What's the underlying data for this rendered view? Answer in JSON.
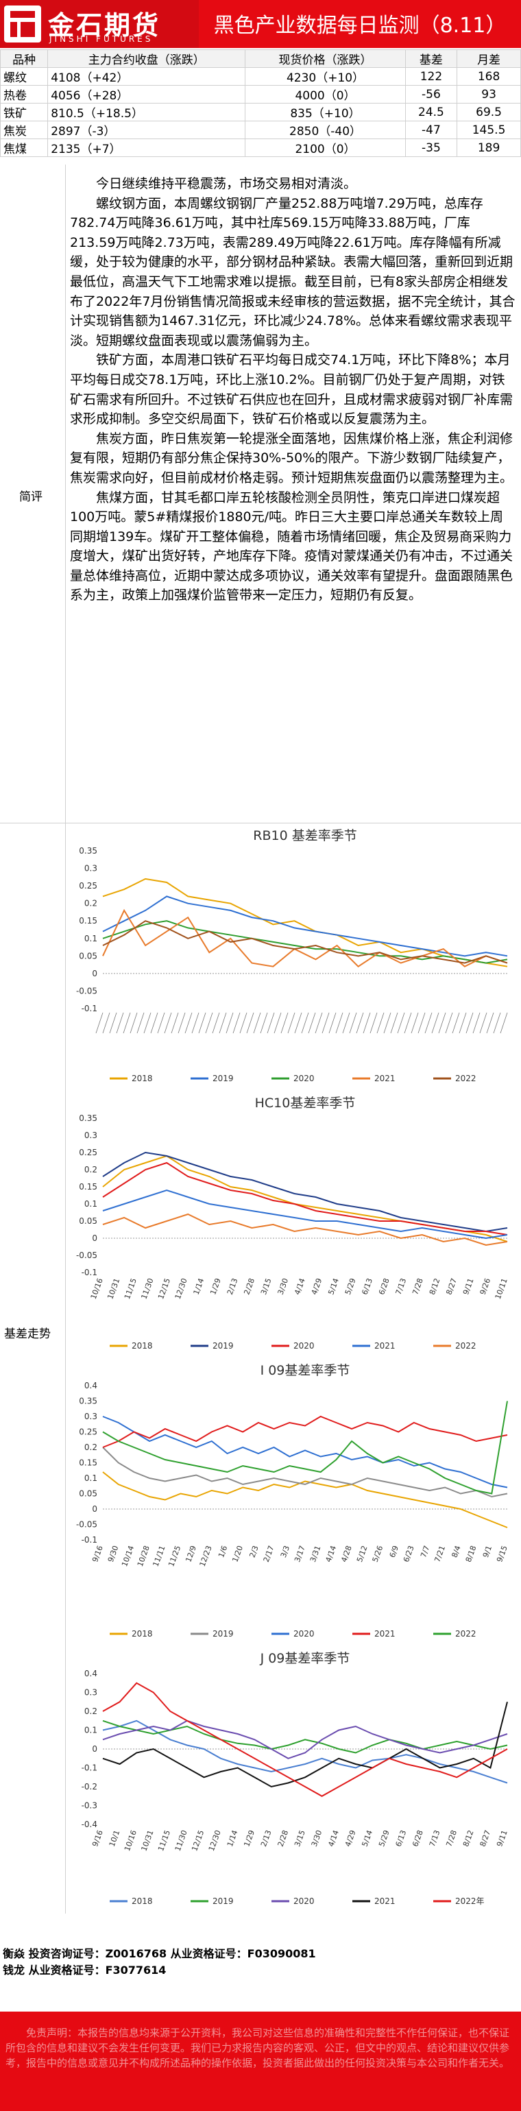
{
  "header": {
    "logo_cn": "金石期货",
    "logo_en": "JINSHI FUTURES",
    "title": "黑色产业数据每日监测（8.11）"
  },
  "table": {
    "columns": [
      "品种",
      "主力合约收盘（涨跌）",
      "现货价格（涨跌）",
      "基差",
      "月差"
    ],
    "rows": [
      [
        "螺纹",
        "4108（+42）",
        "4230（+10）",
        "122",
        "168"
      ],
      [
        "热卷",
        "4056（+28）",
        "4000（0）",
        "-56",
        "93"
      ],
      [
        "铁矿",
        "810.5（+18.5）",
        "835（+10）",
        "24.5",
        "69.5"
      ],
      [
        "焦炭",
        "2897（-3）",
        "2850（-40）",
        "-47",
        "145.5"
      ],
      [
        "焦煤",
        "2135（+7）",
        "2100（0）",
        "-35",
        "189"
      ]
    ]
  },
  "summary": {
    "label": "简评",
    "paragraphs": [
      "今日继续维持平稳震荡，市场交易相对清淡。",
      "螺纹钢方面，本周螺纹钢钢厂产量252.88万吨增7.29万吨，总库存782.74万吨降36.61万吨，其中社库569.15万吨降33.88万吨，厂库213.59万吨降2.73万吨，表需289.49万吨降22.61万吨。库存降幅有所减缓，处于较为健康的水平，部分钢材品种紧缺。表需大幅回落，重新回到近期最低位，高温天气下工地需求难以提振。截至目前，已有8家头部房企相继发布了2022年7月份销售情况简报或未经审核的营运数据，据不完全统计，其合计实现销售额为1467.31亿元，环比减少24.78%。总体来看螺纹需求表现平淡。短期螺纹盘面表现或以震荡偏弱为主。",
      "铁矿方面，本周港口铁矿石平均每日成交74.1万吨，环比下降8%；本月平均每日成交78.1万吨，环比上涨10.2%。目前钢厂仍处于复产周期，对铁矿石需求有所回升。不过铁矿石供应也在回升，且成材需求疲弱对钢厂补库需求形成抑制。多空交织局面下，铁矿石价格或以反复震荡为主。",
      "焦炭方面，昨日焦炭第一轮提涨全面落地，因焦煤价格上涨，焦企利润修复有限，短期仍有部分焦企保持30%-50%的限产。下游少数钢厂陆续复产，焦炭需求向好，但目前成材价格走弱。预计短期焦炭盘面仍以震荡整理为主。",
      "焦煤方面，甘其毛都口岸五轮核酸检测全员阴性，策克口岸进口煤炭超100万吨。蒙5#精煤报价1880元/吨。昨日三大主要口岸总通关车数较上周同期增139车。煤矿开工整体偏稳，随着市场情绪回暖，焦企及贸易商采购力度增大，煤矿出货好转，产地库存下降。疫情对蒙煤通关仍有冲击，不过通关量总体维持高位，近期中蒙达成多项协议，通关效率有望提升。盘面跟随黑色系为主，政策上加强煤价监管带来一定压力，短期仍有反复。"
    ]
  },
  "basis": {
    "label": "基差走势"
  },
  "chart_data": [
    {
      "type": "line",
      "title": "RB10 基差率季节",
      "ylim": [
        -0.1,
        0.35
      ],
      "yticks": [
        "0.35",
        "0.3",
        "0.25",
        "0.2",
        "0.15",
        "0.1",
        "0.05",
        "0",
        "-0.05",
        "-0.1"
      ],
      "legend_placement": "bottom",
      "series": [
        {
          "name": "2018",
          "color": "#e8a400",
          "values": [
            0.22,
            0.24,
            0.27,
            0.26,
            0.22,
            0.21,
            0.2,
            0.17,
            0.14,
            0.15,
            0.12,
            0.11,
            0.08,
            0.09,
            0.06,
            0.07,
            0.05,
            0.04,
            0.03,
            0.02
          ]
        },
        {
          "name": "2019",
          "color": "#2e6fd1",
          "values": [
            0.12,
            0.15,
            0.18,
            0.22,
            0.2,
            0.19,
            0.18,
            0.16,
            0.15,
            0.13,
            0.12,
            0.11,
            0.1,
            0.09,
            0.08,
            0.07,
            0.06,
            0.05,
            0.06,
            0.05
          ]
        },
        {
          "name": "2020",
          "color": "#2e9d2e",
          "values": [
            0.1,
            0.12,
            0.14,
            0.15,
            0.13,
            0.12,
            0.11,
            0.1,
            0.09,
            0.08,
            0.07,
            0.07,
            0.06,
            0.05,
            0.05,
            0.04,
            0.05,
            0.04,
            0.03,
            0.04
          ]
        },
        {
          "name": "2021",
          "color": "#e87a2a",
          "values": [
            0.05,
            0.18,
            0.08,
            0.12,
            0.16,
            0.06,
            0.1,
            0.03,
            0.02,
            0.07,
            0.04,
            0.08,
            0.02,
            0.06,
            0.03,
            0.05,
            0.07,
            0.02,
            0.05,
            0.03
          ]
        },
        {
          "name": "2022",
          "color": "#a0521c",
          "values": [
            0.08,
            0.11,
            0.15,
            0.13,
            0.1,
            0.12,
            0.09,
            0.1,
            0.08,
            0.07,
            0.08,
            0.06,
            0.05,
            0.06,
            0.04,
            0.05,
            0.04,
            0.03,
            0.05,
            0.03
          ]
        }
      ]
    },
    {
      "type": "line",
      "title": "HC10基差率季节",
      "ylim": [
        -0.1,
        0.35
      ],
      "yticks": [
        "0.35",
        "0.3",
        "0.25",
        "0.2",
        "0.15",
        "0.1",
        "0.05",
        "0",
        "-0.05",
        "-0.1"
      ],
      "xticks": [
        "10/16",
        "10/31",
        "11/15",
        "11/30",
        "12/15",
        "12/30",
        "1/14",
        "1/29",
        "2/13",
        "2/28",
        "3/15",
        "3/30",
        "4/14",
        "4/29",
        "5/14",
        "5/29",
        "6/13",
        "6/28",
        "7/13",
        "7/28",
        "8/12",
        "8/27",
        "9/11",
        "9/26",
        "10/11"
      ],
      "legend_placement": "bottom",
      "series": [
        {
          "name": "2018",
          "color": "#e8a400",
          "values": [
            0.15,
            0.2,
            0.22,
            0.24,
            0.2,
            0.18,
            0.15,
            0.14,
            0.12,
            0.1,
            0.09,
            0.08,
            0.07,
            0.06,
            0.05,
            0.04,
            0.03,
            0.02,
            0.01,
            -0.01
          ]
        },
        {
          "name": "2019",
          "color": "#1f3c88",
          "values": [
            0.18,
            0.22,
            0.25,
            0.24,
            0.22,
            0.2,
            0.18,
            0.17,
            0.15,
            0.13,
            0.12,
            0.1,
            0.09,
            0.08,
            0.06,
            0.05,
            0.04,
            0.03,
            0.02,
            0.03
          ]
        },
        {
          "name": "2020",
          "color": "#e01b1b",
          "values": [
            0.12,
            0.16,
            0.2,
            0.22,
            0.18,
            0.16,
            0.14,
            0.13,
            0.11,
            0.1,
            0.08,
            0.07,
            0.06,
            0.05,
            0.05,
            0.04,
            0.03,
            0.02,
            0.02,
            0.01
          ]
        },
        {
          "name": "2021",
          "color": "#2e6fd1",
          "values": [
            0.08,
            0.1,
            0.12,
            0.14,
            0.12,
            0.1,
            0.09,
            0.08,
            0.07,
            0.06,
            0.05,
            0.05,
            0.04,
            0.03,
            0.02,
            0.03,
            0.02,
            0.01,
            0.0,
            0.01
          ]
        },
        {
          "name": "2022",
          "color": "#e87a2a",
          "values": [
            0.04,
            0.06,
            0.03,
            0.05,
            0.07,
            0.04,
            0.05,
            0.03,
            0.04,
            0.02,
            0.03,
            0.02,
            0.01,
            0.02,
            0.0,
            0.01,
            -0.01,
            0.0,
            -0.02,
            -0.01
          ]
        }
      ]
    },
    {
      "type": "line",
      "title": "I 09基差率季节",
      "ylim": [
        -0.1,
        0.4
      ],
      "yticks": [
        "0.4",
        "0.35",
        "0.3",
        "0.25",
        "0.2",
        "0.15",
        "0.1",
        "0.05",
        "0",
        "-0.05",
        "-0.1"
      ],
      "xticks": [
        "9/16",
        "9/30",
        "10/14",
        "10/28",
        "11/11",
        "11/25",
        "12/9",
        "12/23",
        "1/6",
        "1/20",
        "2/3",
        "2/17",
        "3/3",
        "3/17",
        "3/31",
        "4/14",
        "4/28",
        "5/12",
        "5/26",
        "6/9",
        "6/23",
        "7/7",
        "7/21",
        "8/4",
        "8/18",
        "9/1",
        "9/15"
      ],
      "legend_placement": "bottom",
      "series": [
        {
          "name": "2018",
          "color": "#e8a400",
          "values": [
            0.12,
            0.08,
            0.06,
            0.04,
            0.03,
            0.05,
            0.04,
            0.06,
            0.05,
            0.07,
            0.06,
            0.08,
            0.07,
            0.09,
            0.08,
            0.07,
            0.08,
            0.06,
            0.05,
            0.04,
            0.03,
            0.02,
            0.01,
            0.0,
            -0.02,
            -0.04,
            -0.06
          ]
        },
        {
          "name": "2019",
          "color": "#8a8a8a",
          "values": [
            0.2,
            0.15,
            0.12,
            0.1,
            0.09,
            0.1,
            0.11,
            0.09,
            0.1,
            0.08,
            0.09,
            0.1,
            0.09,
            0.08,
            0.1,
            0.09,
            0.08,
            0.1,
            0.09,
            0.08,
            0.07,
            0.06,
            0.07,
            0.05,
            0.06,
            0.04,
            0.05
          ]
        },
        {
          "name": "2020",
          "color": "#2e6fd1",
          "values": [
            0.3,
            0.28,
            0.25,
            0.22,
            0.24,
            0.22,
            0.2,
            0.22,
            0.18,
            0.2,
            0.18,
            0.2,
            0.17,
            0.19,
            0.17,
            0.18,
            0.16,
            0.17,
            0.15,
            0.16,
            0.14,
            0.15,
            0.13,
            0.12,
            0.1,
            0.08,
            0.07
          ]
        },
        {
          "name": "2021",
          "color": "#e01b1b",
          "values": [
            0.2,
            0.22,
            0.25,
            0.23,
            0.26,
            0.24,
            0.22,
            0.25,
            0.27,
            0.25,
            0.28,
            0.26,
            0.28,
            0.27,
            0.3,
            0.28,
            0.26,
            0.28,
            0.27,
            0.25,
            0.28,
            0.26,
            0.25,
            0.24,
            0.22,
            0.23,
            0.24
          ]
        },
        {
          "name": "2022",
          "color": "#2ea02e",
          "values": [
            0.25,
            0.22,
            0.2,
            0.18,
            0.16,
            0.15,
            0.14,
            0.13,
            0.12,
            0.14,
            0.13,
            0.12,
            0.14,
            0.13,
            0.12,
            0.16,
            0.22,
            0.18,
            0.15,
            0.17,
            0.15,
            0.13,
            0.1,
            0.08,
            0.06,
            0.05,
            0.35
          ]
        }
      ]
    },
    {
      "type": "line",
      "title": "J 09基差率季节",
      "ylim": [
        -0.4,
        0.4
      ],
      "yticks": [
        "0.4",
        "0.3",
        "0.2",
        "0.1",
        "0",
        "-0.1",
        "-0.2",
        "-0.3",
        "-0.4"
      ],
      "xticks": [
        "9/16",
        "10/1",
        "10/16",
        "10/31",
        "11/15",
        "11/30",
        "12/15",
        "12/30",
        "1/14",
        "1/29",
        "2/13",
        "2/28",
        "3/15",
        "3/30",
        "4/14",
        "4/29",
        "5/14",
        "5/29",
        "6/13",
        "6/28",
        "7/13",
        "7/28",
        "8/12",
        "8/27",
        "9/11"
      ],
      "legend_placement": "bottom",
      "series": [
        {
          "name": "2018",
          "color": "#4a7fd1",
          "values": [
            0.1,
            0.12,
            0.15,
            0.1,
            0.05,
            0.02,
            0.0,
            -0.05,
            -0.08,
            -0.1,
            -0.12,
            -0.1,
            -0.08,
            -0.05,
            -0.08,
            -0.1,
            -0.06,
            -0.05,
            -0.03,
            -0.05,
            -0.08,
            -0.1,
            -0.12,
            -0.15,
            -0.18
          ]
        },
        {
          "name": "2019",
          "color": "#2ea02e",
          "values": [
            0.15,
            0.12,
            0.1,
            0.08,
            0.1,
            0.12,
            0.08,
            0.05,
            0.03,
            0.02,
            0.0,
            0.02,
            0.05,
            0.03,
            0.0,
            -0.02,
            0.02,
            0.05,
            0.03,
            0.0,
            0.02,
            0.04,
            0.02,
            0.0,
            0.02
          ]
        },
        {
          "name": "2020",
          "color": "#6a4caf",
          "values": [
            0.05,
            0.08,
            0.1,
            0.12,
            0.1,
            0.15,
            0.12,
            0.1,
            0.08,
            0.05,
            0.0,
            -0.05,
            -0.02,
            0.05,
            0.1,
            0.12,
            0.08,
            0.05,
            0.02,
            0.0,
            -0.02,
            0.0,
            0.02,
            0.05,
            0.08
          ]
        },
        {
          "name": "2021",
          "color": "#111111",
          "values": [
            -0.05,
            -0.08,
            -0.02,
            0.0,
            -0.05,
            -0.1,
            -0.15,
            -0.12,
            -0.1,
            -0.15,
            -0.2,
            -0.18,
            -0.15,
            -0.1,
            -0.05,
            -0.08,
            -0.1,
            -0.05,
            0.0,
            -0.05,
            -0.1,
            -0.08,
            -0.05,
            -0.1,
            0.25
          ]
        },
        {
          "name": "2022年",
          "color": "#e01b1b",
          "values": [
            0.2,
            0.25,
            0.35,
            0.3,
            0.2,
            0.15,
            0.1,
            0.05,
            0.0,
            -0.05,
            -0.1,
            -0.15,
            -0.2,
            -0.25,
            -0.2,
            -0.15,
            -0.1,
            -0.05,
            -0.08,
            -0.1,
            -0.12,
            -0.15,
            -0.1,
            -0.05,
            0.0
          ]
        }
      ]
    }
  ],
  "analysts": {
    "line1": "衡焱 投资咨询证号：Z0016768 从业资格证号：F03090081",
    "line2": "钱龙 从业资格证号：F3077614"
  },
  "disclaimer": "免责声明：本报告的信息均来源于公开资料，我公司对这些信息的准确性和完整性不作任何保证，也不保证所包含的信息和建议不会发生任何变更。我们已力求报告内容的客观、公正，但文中的观点、结论和建议仅供参考，报告中的信息或意见并不构成所述品种的操作依据，投资者据此做出的任何投资决策与本公司和作者无关。",
  "colors": {
    "brand_red": "#e50a12"
  }
}
